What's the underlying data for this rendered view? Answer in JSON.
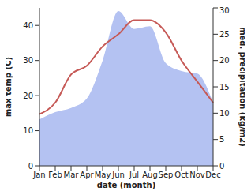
{
  "chart_data": {
    "type": "line",
    "x_label": "date (month)",
    "y_label": "max temp (C)",
    "y2_label": "med. precipitation (kg/m2)",
    "categories": [
      "Jan",
      "Feb",
      "Mar",
      "Apr",
      "May",
      "Jun",
      "Jul",
      "Aug",
      "Sep",
      "Oct",
      "Nov",
      "Dec"
    ],
    "ylim": [
      0,
      45
    ],
    "yticks": [
      0,
      10,
      20,
      30,
      40
    ],
    "y2lim": [
      0,
      30
    ],
    "y2ticks": [
      0,
      5,
      10,
      15,
      20,
      25,
      30
    ],
    "series": [
      {
        "name": "med. precipitation",
        "type": "area",
        "axis": "y2",
        "color": "#b4c2f2",
        "values": [
          8.8,
          10.2,
          11,
          12.8,
          20,
          29.4,
          26,
          26.5,
          19.5,
          18,
          17.5,
          12
        ]
      },
      {
        "name": "max temp",
        "type": "line",
        "color": "#c65a57",
        "values": [
          14.7,
          18,
          26,
          28.5,
          34,
          37.5,
          41.5,
          41.5,
          38,
          30,
          24,
          18
        ]
      }
    ]
  }
}
